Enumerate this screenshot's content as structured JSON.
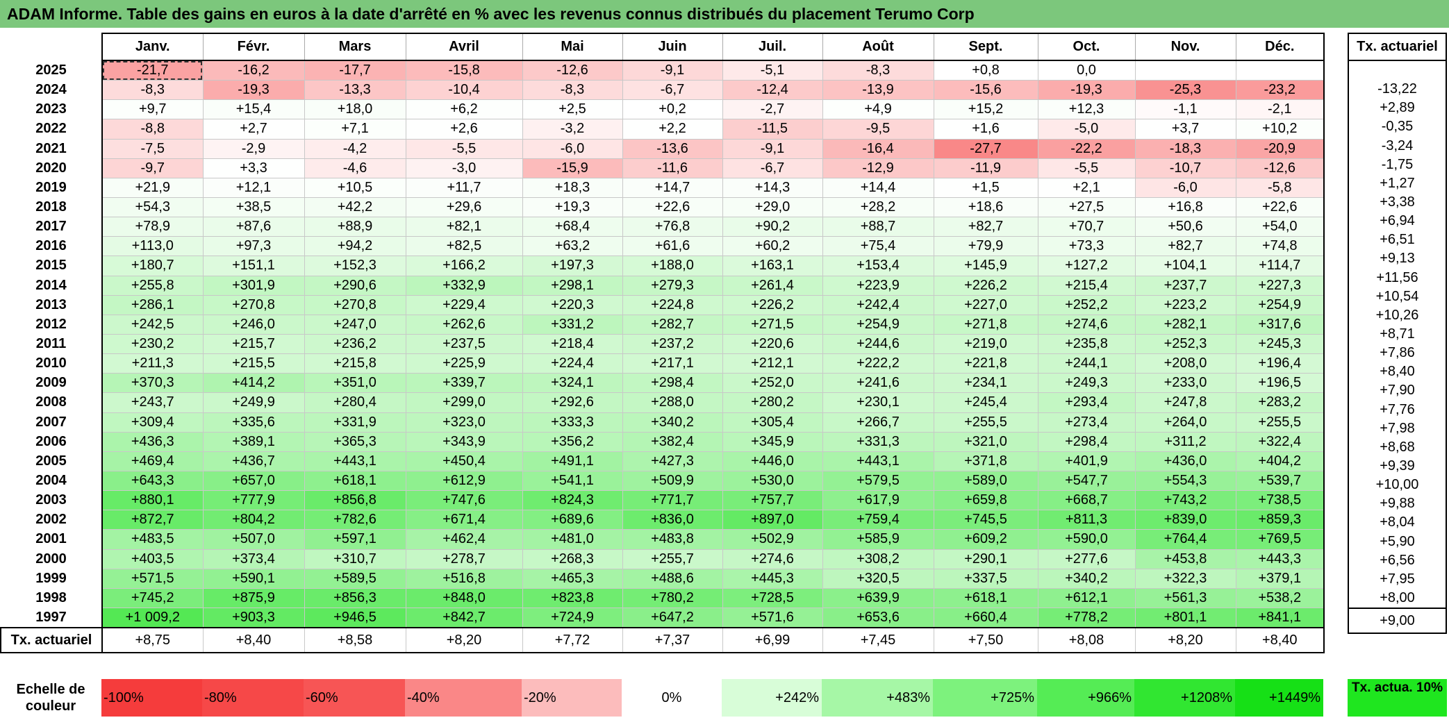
{
  "title": "ADAM Informe. Table des gains en euros à la date d'arrêté en % avec les revenus connus distribués du placement Terumo Corp",
  "chart_data": {
    "type": "heatmap",
    "months": [
      "Janv.",
      "Févr.",
      "Mars",
      "Avril",
      "Mai",
      "Juin",
      "Juil.",
      "Août",
      "Sept.",
      "Oct.",
      "Nov.",
      "Déc."
    ],
    "side_header": "Tx. actuariel",
    "rows": [
      {
        "year": "2025",
        "values": [
          "-21,7",
          "-16,2",
          "-17,7",
          "-15,8",
          "-12,6",
          "-9,1",
          "-5,1",
          "-8,3",
          "+0,8",
          "0,0",
          "",
          ""
        ],
        "rate": ""
      },
      {
        "year": "2024",
        "values": [
          "-8,3",
          "-19,3",
          "-13,3",
          "-10,4",
          "-8,3",
          "-6,7",
          "-12,4",
          "-13,9",
          "-15,6",
          "-19,3",
          "-25,3",
          "-23,2"
        ],
        "rate": "-13,22"
      },
      {
        "year": "2023",
        "values": [
          "+9,7",
          "+15,4",
          "+18,0",
          "+6,2",
          "+2,5",
          "+0,2",
          "-2,7",
          "+4,9",
          "+15,2",
          "+12,3",
          "-1,1",
          "-2,1"
        ],
        "rate": "+2,89"
      },
      {
        "year": "2022",
        "values": [
          "-8,8",
          "+2,7",
          "+7,1",
          "+2,6",
          "-3,2",
          "+2,2",
          "-11,5",
          "-9,5",
          "+1,6",
          "-5,0",
          "+3,7",
          "+10,2"
        ],
        "rate": "-0,35"
      },
      {
        "year": "2021",
        "values": [
          "-7,5",
          "-2,9",
          "-4,2",
          "-5,5",
          "-6,0",
          "-13,6",
          "-9,1",
          "-16,4",
          "-27,7",
          "-22,2",
          "-18,3",
          "-20,9"
        ],
        "rate": "-3,24"
      },
      {
        "year": "2020",
        "values": [
          "-9,7",
          "+3,3",
          "-4,6",
          "-3,0",
          "-15,9",
          "-11,6",
          "-6,7",
          "-12,9",
          "-11,9",
          "-5,5",
          "-10,7",
          "-12,6"
        ],
        "rate": "-1,75"
      },
      {
        "year": "2019",
        "values": [
          "+21,9",
          "+12,1",
          "+10,5",
          "+11,7",
          "+18,3",
          "+14,7",
          "+14,3",
          "+14,4",
          "+1,5",
          "+2,1",
          "-6,0",
          "-5,8"
        ],
        "rate": "+1,27"
      },
      {
        "year": "2018",
        "values": [
          "+54,3",
          "+38,5",
          "+42,2",
          "+29,6",
          "+19,3",
          "+22,6",
          "+29,0",
          "+28,2",
          "+18,6",
          "+27,5",
          "+16,8",
          "+22,6"
        ],
        "rate": "+3,38"
      },
      {
        "year": "2017",
        "values": [
          "+78,9",
          "+87,6",
          "+88,9",
          "+82,1",
          "+68,4",
          "+76,8",
          "+90,2",
          "+88,7",
          "+82,7",
          "+70,7",
          "+50,6",
          "+54,0"
        ],
        "rate": "+6,94"
      },
      {
        "year": "2016",
        "values": [
          "+113,0",
          "+97,3",
          "+94,2",
          "+82,5",
          "+63,2",
          "+61,6",
          "+60,2",
          "+75,4",
          "+79,9",
          "+73,3",
          "+82,7",
          "+74,8"
        ],
        "rate": "+6,51"
      },
      {
        "year": "2015",
        "values": [
          "+180,7",
          "+151,1",
          "+152,3",
          "+166,2",
          "+197,3",
          "+188,0",
          "+163,1",
          "+153,4",
          "+145,9",
          "+127,2",
          "+104,1",
          "+114,7"
        ],
        "rate": "+9,13"
      },
      {
        "year": "2014",
        "values": [
          "+255,8",
          "+301,9",
          "+290,6",
          "+332,9",
          "+298,1",
          "+279,3",
          "+261,4",
          "+223,9",
          "+226,2",
          "+215,4",
          "+237,7",
          "+227,3"
        ],
        "rate": "+11,56"
      },
      {
        "year": "2013",
        "values": [
          "+286,1",
          "+270,8",
          "+270,8",
          "+229,4",
          "+220,3",
          "+224,8",
          "+226,2",
          "+242,4",
          "+227,0",
          "+252,2",
          "+223,2",
          "+254,9"
        ],
        "rate": "+10,54"
      },
      {
        "year": "2012",
        "values": [
          "+242,5",
          "+246,0",
          "+247,0",
          "+262,6",
          "+331,2",
          "+282,7",
          "+271,5",
          "+254,9",
          "+271,8",
          "+274,6",
          "+282,1",
          "+317,6"
        ],
        "rate": "+10,26"
      },
      {
        "year": "2011",
        "values": [
          "+230,2",
          "+215,7",
          "+236,2",
          "+237,5",
          "+218,4",
          "+237,2",
          "+220,6",
          "+244,6",
          "+219,0",
          "+235,8",
          "+252,3",
          "+245,3"
        ],
        "rate": "+8,71"
      },
      {
        "year": "2010",
        "values": [
          "+211,3",
          "+215,5",
          "+215,8",
          "+225,9",
          "+224,4",
          "+217,1",
          "+212,1",
          "+222,2",
          "+221,8",
          "+244,1",
          "+208,0",
          "+196,4"
        ],
        "rate": "+7,86"
      },
      {
        "year": "2009",
        "values": [
          "+370,3",
          "+414,2",
          "+351,0",
          "+339,7",
          "+324,1",
          "+298,4",
          "+252,0",
          "+241,6",
          "+234,1",
          "+249,3",
          "+233,0",
          "+196,5"
        ],
        "rate": "+8,40"
      },
      {
        "year": "2008",
        "values": [
          "+243,7",
          "+249,9",
          "+280,4",
          "+299,0",
          "+292,6",
          "+288,0",
          "+280,2",
          "+230,1",
          "+245,4",
          "+293,4",
          "+247,8",
          "+283,2"
        ],
        "rate": "+7,90"
      },
      {
        "year": "2007",
        "values": [
          "+309,4",
          "+335,6",
          "+331,9",
          "+323,0",
          "+333,3",
          "+340,2",
          "+305,4",
          "+266,7",
          "+255,5",
          "+273,4",
          "+264,0",
          "+255,5"
        ],
        "rate": "+7,76"
      },
      {
        "year": "2006",
        "values": [
          "+436,3",
          "+389,1",
          "+365,3",
          "+343,9",
          "+356,2",
          "+382,4",
          "+345,9",
          "+331,3",
          "+321,0",
          "+298,4",
          "+311,2",
          "+322,4"
        ],
        "rate": "+7,98"
      },
      {
        "year": "2005",
        "values": [
          "+469,4",
          "+436,7",
          "+443,1",
          "+450,4",
          "+491,1",
          "+427,3",
          "+446,0",
          "+443,1",
          "+371,8",
          "+401,9",
          "+436,0",
          "+404,2"
        ],
        "rate": "+8,68"
      },
      {
        "year": "2004",
        "values": [
          "+643,3",
          "+657,0",
          "+618,1",
          "+612,9",
          "+541,1",
          "+509,9",
          "+530,0",
          "+579,5",
          "+589,0",
          "+547,7",
          "+554,3",
          "+539,7"
        ],
        "rate": "+9,39"
      },
      {
        "year": "2003",
        "values": [
          "+880,1",
          "+777,9",
          "+856,8",
          "+747,6",
          "+824,3",
          "+771,7",
          "+757,7",
          "+617,9",
          "+659,8",
          "+668,7",
          "+743,2",
          "+738,5"
        ],
        "rate": "+10,00"
      },
      {
        "year": "2002",
        "values": [
          "+872,7",
          "+804,2",
          "+782,6",
          "+671,4",
          "+689,6",
          "+836,0",
          "+897,0",
          "+759,4",
          "+745,5",
          "+811,3",
          "+839,0",
          "+859,3"
        ],
        "rate": "+9,88"
      },
      {
        "year": "2001",
        "values": [
          "+483,5",
          "+507,0",
          "+597,1",
          "+462,4",
          "+481,0",
          "+483,8",
          "+502,9",
          "+585,9",
          "+609,2",
          "+590,0",
          "+764,4",
          "+769,5"
        ],
        "rate": "+8,04"
      },
      {
        "year": "2000",
        "values": [
          "+403,5",
          "+373,4",
          "+310,7",
          "+278,7",
          "+268,3",
          "+255,7",
          "+274,6",
          "+308,2",
          "+290,1",
          "+277,6",
          "+453,8",
          "+443,3"
        ],
        "rate": "+5,90"
      },
      {
        "year": "1999",
        "values": [
          "+571,5",
          "+590,1",
          "+589,5",
          "+516,8",
          "+465,3",
          "+488,6",
          "+445,3",
          "+320,5",
          "+337,5",
          "+340,2",
          "+322,3",
          "+379,1"
        ],
        "rate": "+6,56"
      },
      {
        "year": "1998",
        "values": [
          "+745,2",
          "+875,9",
          "+856,3",
          "+848,0",
          "+823,8",
          "+780,2",
          "+728,5",
          "+639,9",
          "+618,1",
          "+612,1",
          "+561,3",
          "+538,2"
        ],
        "rate": "+7,95"
      },
      {
        "year": "1997",
        "values": [
          "+1 009,2",
          "+903,3",
          "+946,5",
          "+842,7",
          "+724,9",
          "+647,2",
          "+571,6",
          "+653,6",
          "+660,4",
          "+778,2",
          "+801,1",
          "+841,1"
        ],
        "rate": "+8,00"
      }
    ],
    "summary": {
      "label": "Tx. actuariel",
      "values": [
        "+8,75",
        "+8,40",
        "+8,58",
        "+8,20",
        "+7,72",
        "+7,37",
        "+6,99",
        "+7,45",
        "+7,50",
        "+8,08",
        "+8,20",
        "+8,40"
      ],
      "rate": "+9,00"
    },
    "scale": {
      "label": "Echelle de couleur",
      "steps": [
        {
          "text": "-100%",
          "color": "#f53c3c"
        },
        {
          "text": "-80%",
          "color": "#f64848"
        },
        {
          "text": "-60%",
          "color": "#f75555"
        },
        {
          "text": "-40%",
          "color": "#fa8787"
        },
        {
          "text": "-20%",
          "color": "#fcbcbc"
        },
        {
          "text": "0%",
          "color": "#ffffff"
        },
        {
          "text": "+242%",
          "color": "#d8fdd8"
        },
        {
          "text": "+483%",
          "color": "#a6f7a6"
        },
        {
          "text": "+725%",
          "color": "#7df27d"
        },
        {
          "text": "+966%",
          "color": "#55ec55"
        },
        {
          "text": "+1208%",
          "color": "#31e631"
        },
        {
          "text": "+1449%",
          "color": "#16e016"
        }
      ],
      "side_text": "Tx. actua. 10%"
    }
  }
}
